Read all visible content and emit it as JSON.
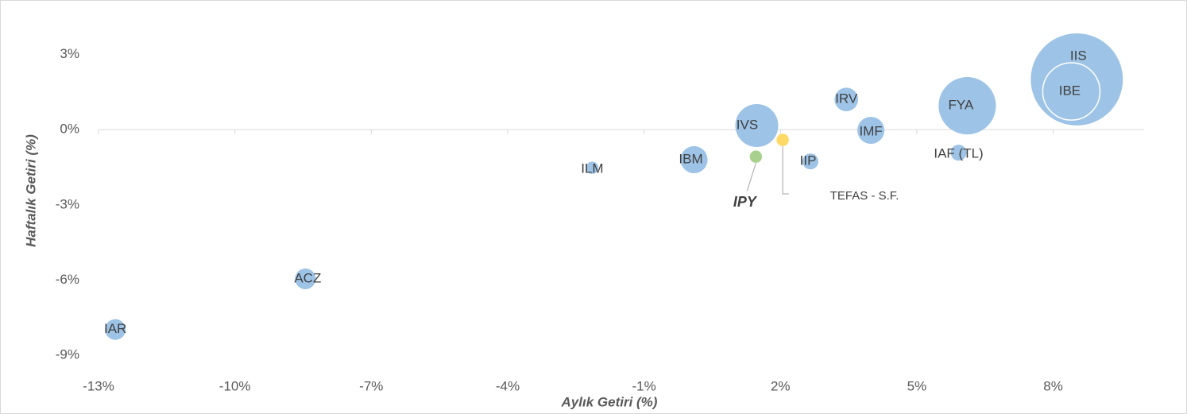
{
  "chart_data": {
    "type": "bubble",
    "x_label": "Aylık Getiri (%)",
    "y_label": "Haftalık Getiri (%)",
    "labels": [
      "IAR",
      "ACZ",
      "ILM",
      "IBM",
      "IVS",
      "IPY",
      "TEFAS - S.F.",
      "IIP",
      "IRV",
      "IMF",
      "IAF (TL)",
      "FYA",
      "IIS",
      "IBE"
    ],
    "x": [
      -12.63,
      -8.45,
      -2.14,
      0.1,
      1.48,
      1.46,
      2.05,
      2.66,
      3.45,
      3.99,
      5.92,
      6.11,
      8.52,
      8.4
    ],
    "values": [
      -7.97,
      -5.95,
      -1.52,
      -1.2,
      0.16,
      -1.08,
      -0.41,
      -1.27,
      1.2,
      -0.03,
      -0.92,
      0.95,
      2.0,
      1.52
    ],
    "sizes": [
      17,
      17,
      6,
      29,
      73,
      6,
      6,
      10,
      22,
      29,
      10,
      130,
      336,
      130
    ],
    "colors": [
      "#9dc3e6",
      "#9dc3e6",
      "#9dc3e6",
      "#9dc3e6",
      "#9dc3e6",
      "#a9d18e",
      "#ffd966",
      "#9dc3e6",
      "#9dc3e6",
      "#9dc3e6",
      "#9dc3e6",
      "#9dc3e6",
      "#9dc3e6",
      "#9dc3e6"
    ],
    "xlim": [
      -13,
      10
    ],
    "ylim": [
      -9.5,
      4.5
    ],
    "xticks": [
      {
        "value": -13,
        "label": "-13%"
      },
      {
        "value": -10,
        "label": "-10%"
      },
      {
        "value": -7,
        "label": "-7%"
      },
      {
        "value": -4,
        "label": "-4%"
      },
      {
        "value": -1,
        "label": "-1%"
      },
      {
        "value": 2,
        "label": "2%"
      },
      {
        "value": 5,
        "label": "5%"
      },
      {
        "value": 8,
        "label": "8%"
      }
    ],
    "yticks": [
      {
        "value": 3,
        "label": "3%"
      },
      {
        "value": 0,
        "label": "0%"
      },
      {
        "value": -3,
        "label": "-3%"
      },
      {
        "value": -6,
        "label": "-6%"
      },
      {
        "value": -9,
        "label": "-9%"
      }
    ]
  }
}
